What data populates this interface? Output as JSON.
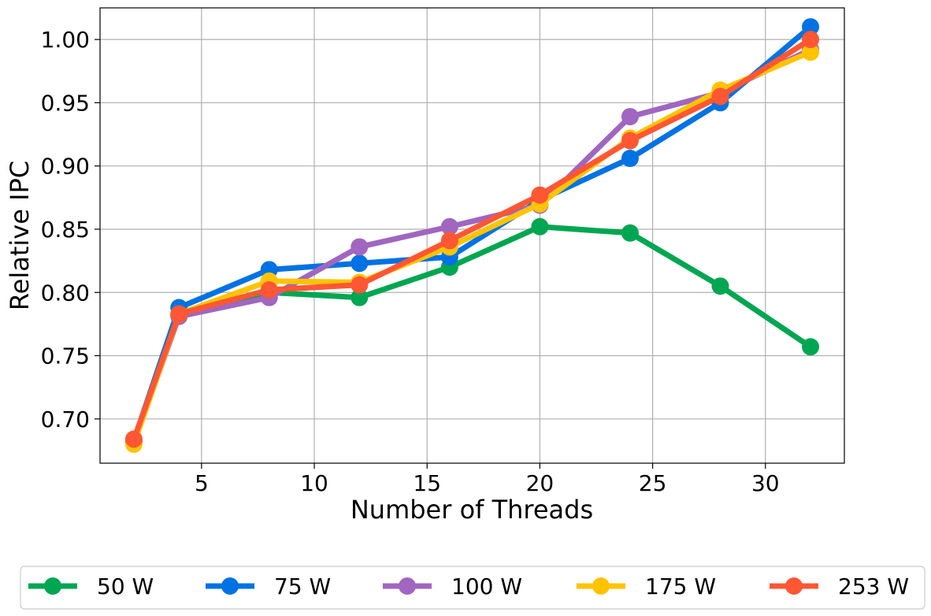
{
  "chart_data": {
    "type": "line",
    "xlabel": "Number of Threads",
    "ylabel": "Relative IPC",
    "xlim": [
      0.5,
      33.5
    ],
    "ylim": [
      0.665,
      1.025
    ],
    "xticks": [
      5,
      10,
      15,
      20,
      25,
      30
    ],
    "xtick_labels": [
      "5",
      "10",
      "15",
      "20",
      "25",
      "30"
    ],
    "yticks": [
      0.7,
      0.75,
      0.8,
      0.85,
      0.9,
      0.95,
      1.0
    ],
    "ytick_labels": [
      "0.70",
      "0.75",
      "0.80",
      "0.85",
      "0.90",
      "0.95",
      "1.00"
    ],
    "grid": true,
    "legend_position": "bottom",
    "x": [
      2,
      4,
      8,
      12,
      16,
      20,
      24,
      28,
      32
    ],
    "series": [
      {
        "name": "50 W",
        "color": "#00a651",
        "values": [
          0.681,
          0.782,
          0.8,
          0.796,
          0.82,
          0.852,
          0.847,
          0.805,
          0.757
        ]
      },
      {
        "name": "75 W",
        "color": "#0072e3",
        "values": [
          0.683,
          0.788,
          0.818,
          0.823,
          0.828,
          0.873,
          0.906,
          0.95,
          1.01
        ]
      },
      {
        "name": "100 W",
        "color": "#a066c0",
        "values": [
          0.682,
          0.781,
          0.796,
          0.836,
          0.852,
          0.869,
          0.939,
          0.958,
          0.992
        ]
      },
      {
        "name": "175 W",
        "color": "#ffc300",
        "values": [
          0.68,
          0.783,
          0.809,
          0.808,
          0.836,
          0.87,
          0.922,
          0.96,
          0.99
        ]
      },
      {
        "name": "253 W",
        "color": "#ff5733",
        "values": [
          0.684,
          0.783,
          0.802,
          0.806,
          0.841,
          0.877,
          0.92,
          0.955,
          1.0
        ]
      }
    ]
  }
}
